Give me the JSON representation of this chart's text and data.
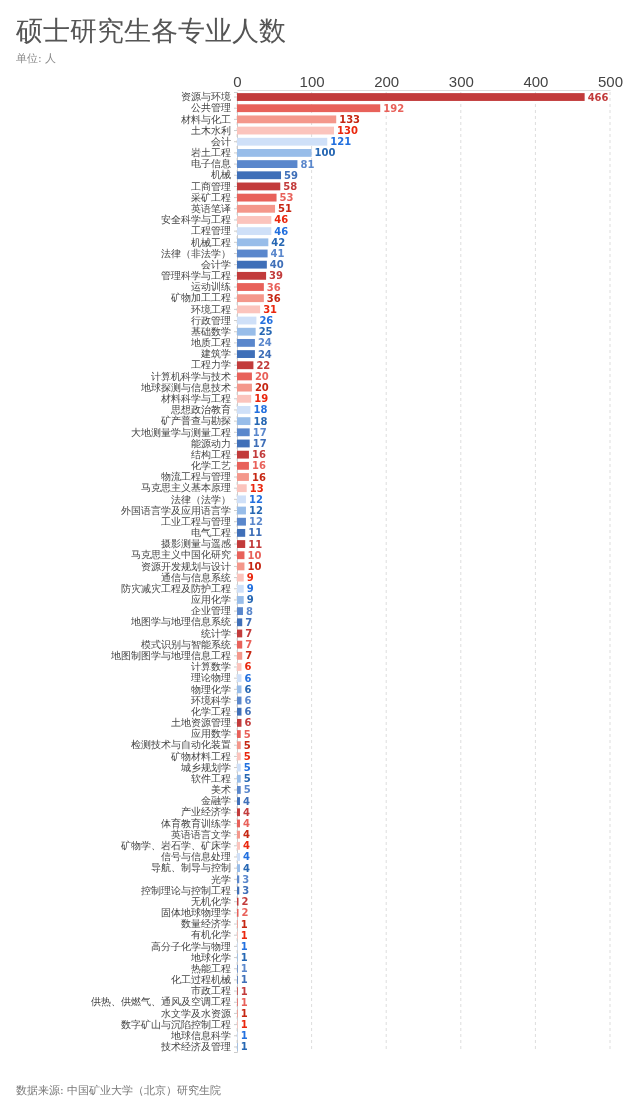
{
  "chart_data": {
    "type": "bar",
    "orientation": "horizontal",
    "title": "硕士研究生各专业人数",
    "subtitle": "单位: 人",
    "annotations": [
      "数据来源: 中国矿业大学（北京）研究生院"
    ],
    "categories": [
      "资源与环境",
      "公共管理",
      "材料与化工",
      "土木水利",
      "会计",
      "岩土工程",
      "电子信息",
      "机械",
      "工商管理",
      "采矿工程",
      "英语笔译",
      "安全科学与工程",
      "工程管理",
      "机械工程",
      "法律（非法学）",
      "会计学",
      "管理科学与工程",
      "运动训练",
      "矿物加工工程",
      "环境工程",
      "行政管理",
      "基础数学",
      "地质工程",
      "建筑学",
      "工程力学",
      "计算机科学与技术",
      "地球探测与信息技术",
      "材料科学与工程",
      "思想政治教育",
      "矿产普查与勘探",
      "大地测量学与测量工程",
      "能源动力",
      "结构工程",
      "化学工艺",
      "物流工程与管理",
      "马克思主义基本原理",
      "法律（法学）",
      "外国语言学及应用语言学",
      "工业工程与管理",
      "电气工程",
      "摄影测量与遥感",
      "马克思主义中国化研究",
      "资源开发规划与设计",
      "通信与信息系统",
      "防灾减灾工程及防护工程",
      "应用化学",
      "企业管理",
      "地图学与地理信息系统",
      "统计学",
      "模式识别与智能系统",
      "地图制图学与地理信息工程",
      "计算数学",
      "理论物理",
      "物理化学",
      "环境科学",
      "化学工程",
      "土地资源管理",
      "应用数学",
      "检测技术与自动化装置",
      "矿物材料工程",
      "城乡规划学",
      "软件工程",
      "美术",
      "金融学",
      "产业经济学",
      "体育教育训练学",
      "英语语言文学",
      "矿物学、岩石学、矿床学",
      "信号与信息处理",
      "导航、制导与控制",
      "光学",
      "控制理论与控制工程",
      "无机化学",
      "固体地球物理学",
      "数量经济学",
      "有机化学",
      "高分子化学与物理",
      "地球化学",
      "热能工程",
      "化工过程机械",
      "市政工程",
      "供热、供燃气、通风及空调工程",
      "水文学及水资源",
      "数字矿山与沉陷控制工程",
      "地球信息科学",
      "技术经济及管理"
    ],
    "values": [
      466,
      192,
      133,
      130,
      121,
      100,
      81,
      59,
      58,
      53,
      51,
      46,
      46,
      42,
      41,
      40,
      39,
      36,
      36,
      31,
      26,
      25,
      24,
      24,
      22,
      20,
      20,
      19,
      18,
      18,
      17,
      17,
      16,
      16,
      16,
      13,
      12,
      12,
      12,
      11,
      11,
      10,
      10,
      9,
      9,
      9,
      8,
      7,
      7,
      7,
      7,
      6,
      6,
      6,
      6,
      6,
      6,
      5,
      5,
      5,
      5,
      5,
      5,
      4,
      4,
      4,
      4,
      4,
      4,
      4,
      3,
      3,
      2,
      2,
      1,
      1,
      1,
      1,
      1,
      1,
      1,
      1,
      1,
      1,
      1,
      1
    ],
    "colors": [
      "#c23b3b",
      "#e8615a",
      "#f4978b",
      "#fbc4bd",
      "#cfe0f8",
      "#98bde9",
      "#5a87cc",
      "#3f6fb8",
      "#c23b3b",
      "#e8615a",
      "#f4978b",
      "#fbc4bd",
      "#cfe0f8",
      "#98bde9",
      "#5a87cc",
      "#3f6fb8",
      "#c23b3b",
      "#e8615a",
      "#f4978b",
      "#fbc4bd",
      "#cfe0f8",
      "#98bde9",
      "#5a87cc",
      "#3f6fb8",
      "#c23b3b",
      "#e8615a",
      "#f4978b",
      "#fbc4bd",
      "#cfe0f8",
      "#98bde9",
      "#5a87cc",
      "#3f6fb8",
      "#c23b3b",
      "#e8615a",
      "#f4978b",
      "#fbc4bd",
      "#cfe0f8",
      "#98bde9",
      "#5a87cc",
      "#3f6fb8",
      "#c23b3b",
      "#e8615a",
      "#f4978b",
      "#fbc4bd",
      "#cfe0f8",
      "#98bde9",
      "#5a87cc",
      "#3f6fb8",
      "#c23b3b",
      "#e8615a",
      "#f4978b",
      "#fbc4bd",
      "#cfe0f8",
      "#98bde9",
      "#5a87cc",
      "#3f6fb8",
      "#c23b3b",
      "#e8615a",
      "#f4978b",
      "#fbc4bd",
      "#cfe0f8",
      "#98bde9",
      "#5a87cc",
      "#3f6fb8",
      "#c23b3b",
      "#e8615a",
      "#f4978b",
      "#fbc4bd",
      "#cfe0f8",
      "#98bde9",
      "#5a87cc",
      "#3f6fb8",
      "#c23b3b",
      "#e8615a",
      "#f4978b",
      "#fbc4bd",
      "#cfe0f8",
      "#98bde9",
      "#5a87cc",
      "#3f6fb8",
      "#c23b3b",
      "#e8615a",
      "#f4978b",
      "#fbc4bd",
      "#cfe0f8",
      "#98bde9"
    ],
    "xlim": [
      0,
      500
    ],
    "xticks": [
      0,
      100,
      200,
      300,
      400,
      500
    ],
    "grid": "x",
    "data_labels": true
  }
}
